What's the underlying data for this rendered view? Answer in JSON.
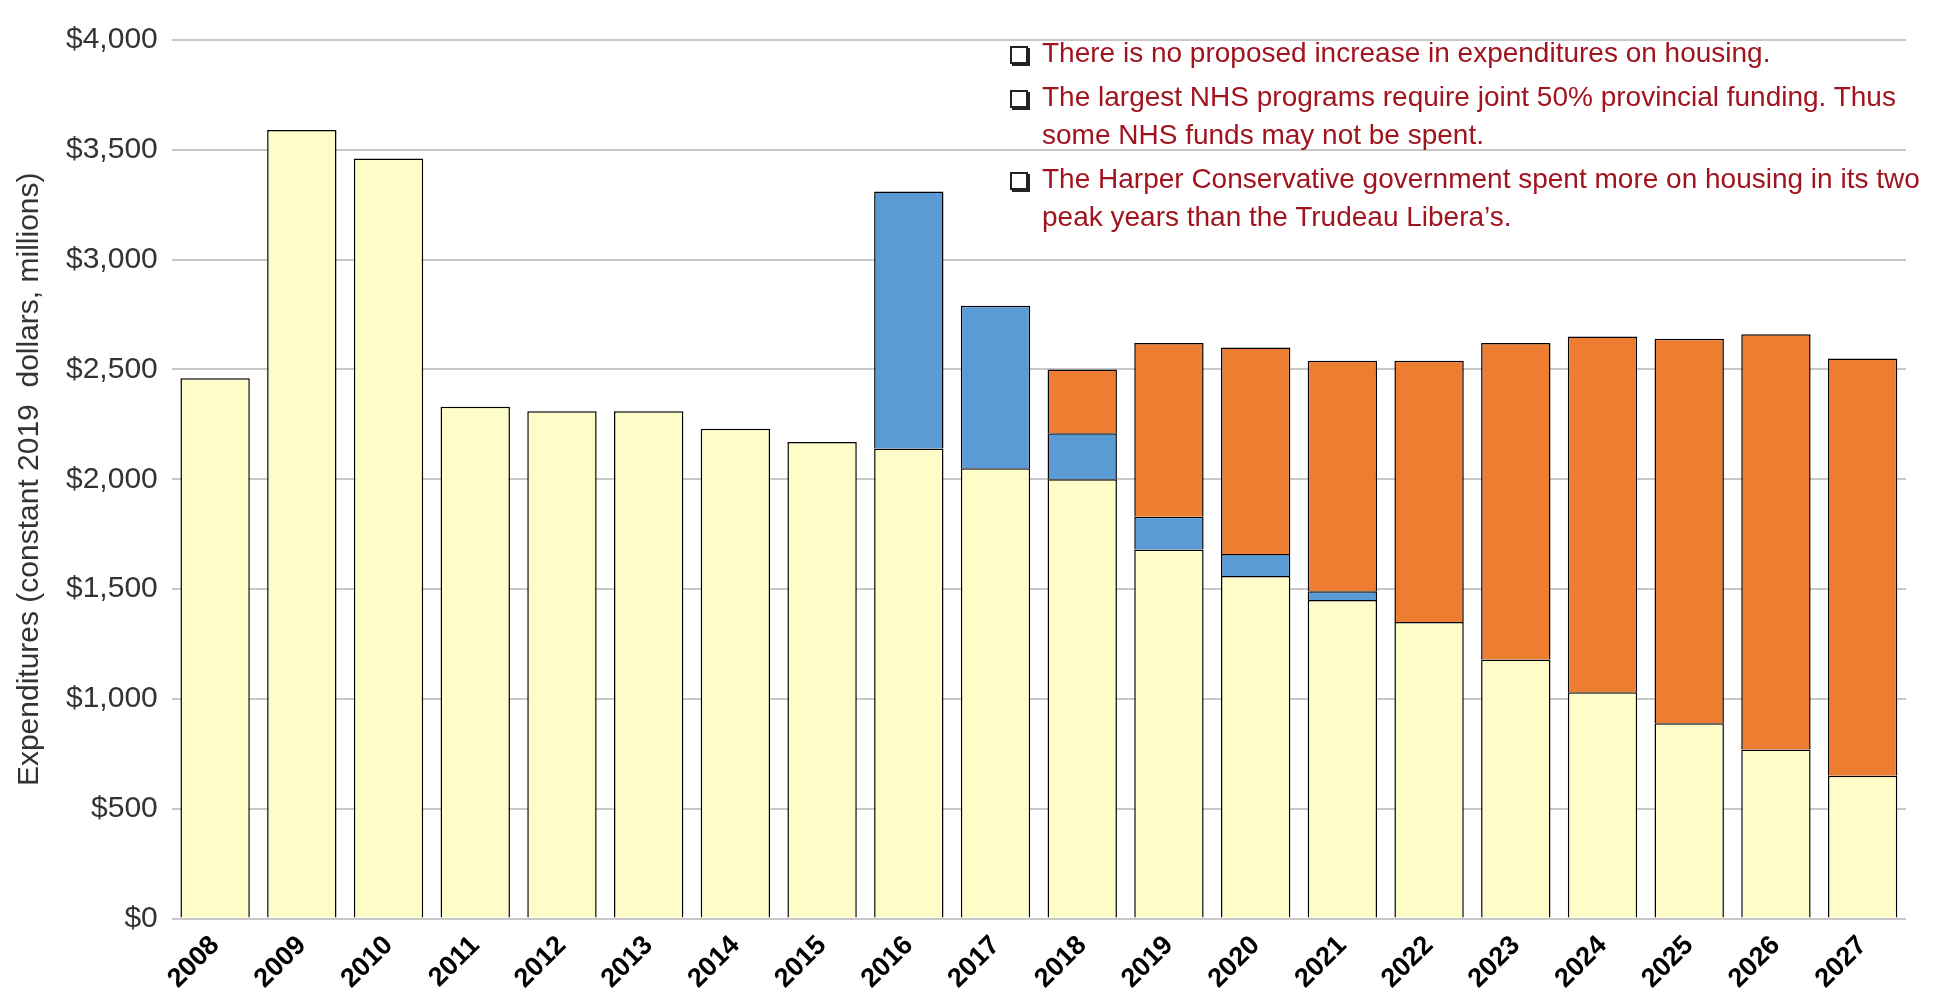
{
  "chart_data": {
    "type": "bar",
    "stacked": true,
    "ylabel": "Expenditures (constant 2019  dollars, millions)",
    "categories": [
      "2008",
      "2009",
      "2010",
      "2011",
      "2012",
      "2013",
      "2014",
      "2015",
      "2016",
      "2017",
      "2018",
      "2019",
      "2020",
      "2021",
      "2022",
      "2023",
      "2024",
      "2025",
      "2026",
      "2027"
    ],
    "series": [
      {
        "color": "#fefdc8",
        "values": [
          2460,
          3590,
          3460,
          2330,
          2310,
          2310,
          2230,
          2170,
          2140,
          2050,
          2000,
          1680,
          1560,
          1450,
          1350,
          1180,
          1030,
          890,
          770,
          650
        ]
      },
      {
        "color": "#5b9bd5",
        "values": [
          null,
          null,
          null,
          null,
          null,
          null,
          null,
          null,
          1170,
          740,
          210,
          150,
          100,
          40,
          null,
          null,
          null,
          null,
          null,
          null
        ]
      },
      {
        "color": "#ed7d31",
        "values": [
          null,
          null,
          null,
          null,
          null,
          null,
          null,
          null,
          null,
          null,
          290,
          790,
          940,
          1050,
          1190,
          1440,
          1620,
          1750,
          1890,
          1900
        ]
      }
    ],
    "ylim": [
      0,
      4000
    ],
    "yticks": [
      {
        "value": 0,
        "label": "$0"
      },
      {
        "value": 500,
        "label": "$500"
      },
      {
        "value": 1000,
        "label": "$1,000"
      },
      {
        "value": 1500,
        "label": "$1,500"
      },
      {
        "value": 2000,
        "label": "$2,000"
      },
      {
        "value": 2500,
        "label": "$2,500"
      },
      {
        "value": 3000,
        "label": "$3,000"
      },
      {
        "value": 3500,
        "label": "$3,500"
      },
      {
        "value": 4000,
        "label": "$4,000"
      }
    ],
    "grid": "y",
    "legend": false,
    "annotations": [
      "There is no proposed increase in expenditures on housing.",
      "The largest NHS programs require joint 50% provincial funding. Thus some NHS funds may not be spent.",
      "The Harper Conservative government spent more on housing in its two peak years than the Trudeau Libera’s."
    ]
  }
}
